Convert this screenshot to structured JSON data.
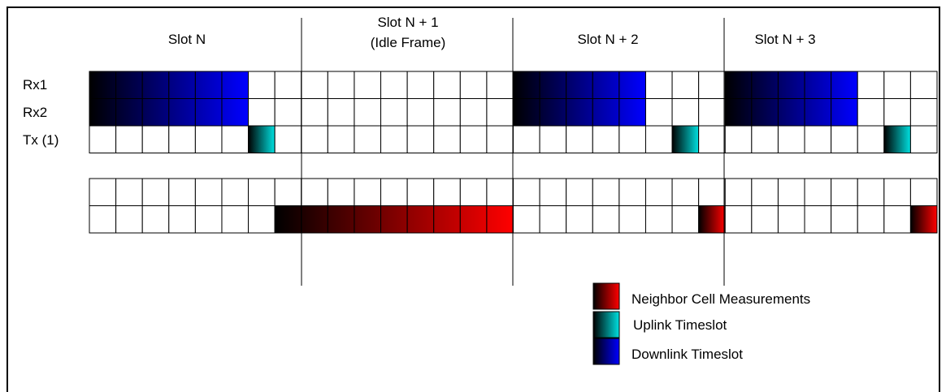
{
  "slots": [
    {
      "id": "slot-n",
      "line1": "Slot N",
      "line2": ""
    },
    {
      "id": "slot-n1",
      "line1": "Slot N + 1",
      "line2": "(Idle Frame)"
    },
    {
      "id": "slot-n2",
      "line1": "Slot N + 2",
      "line2": ""
    },
    {
      "id": "slot-n3",
      "line1": "Slot N + 3",
      "line2": ""
    }
  ],
  "row_labels": {
    "rx1": "Rx1",
    "rx2": "Rx2",
    "tx": "Tx (1)"
  },
  "legend": [
    {
      "id": "neighbor",
      "label": "Neighbor Cell Measurements",
      "color": "#ff0000",
      "gradient_from": "#000000"
    },
    {
      "id": "uplink",
      "label": "Uplink Timeslot",
      "color": "#00e0e0",
      "gradient_from": "#000000"
    },
    {
      "id": "downlink",
      "label": "Downlink Timeslot",
      "color": "#0000ff",
      "gradient_from": "#000000"
    }
  ],
  "timeline": {
    "total_cells": 32,
    "cells_per_slot": 8,
    "rx_downlink_runs": [
      [
        0,
        5
      ],
      [
        16,
        20
      ],
      [
        24,
        28
      ]
    ],
    "tx_uplink_cells": [
      6,
      22,
      30
    ],
    "neighbor_runs": [
      [
        7,
        15
      ],
      [
        23,
        23
      ],
      [
        31,
        31
      ]
    ]
  }
}
